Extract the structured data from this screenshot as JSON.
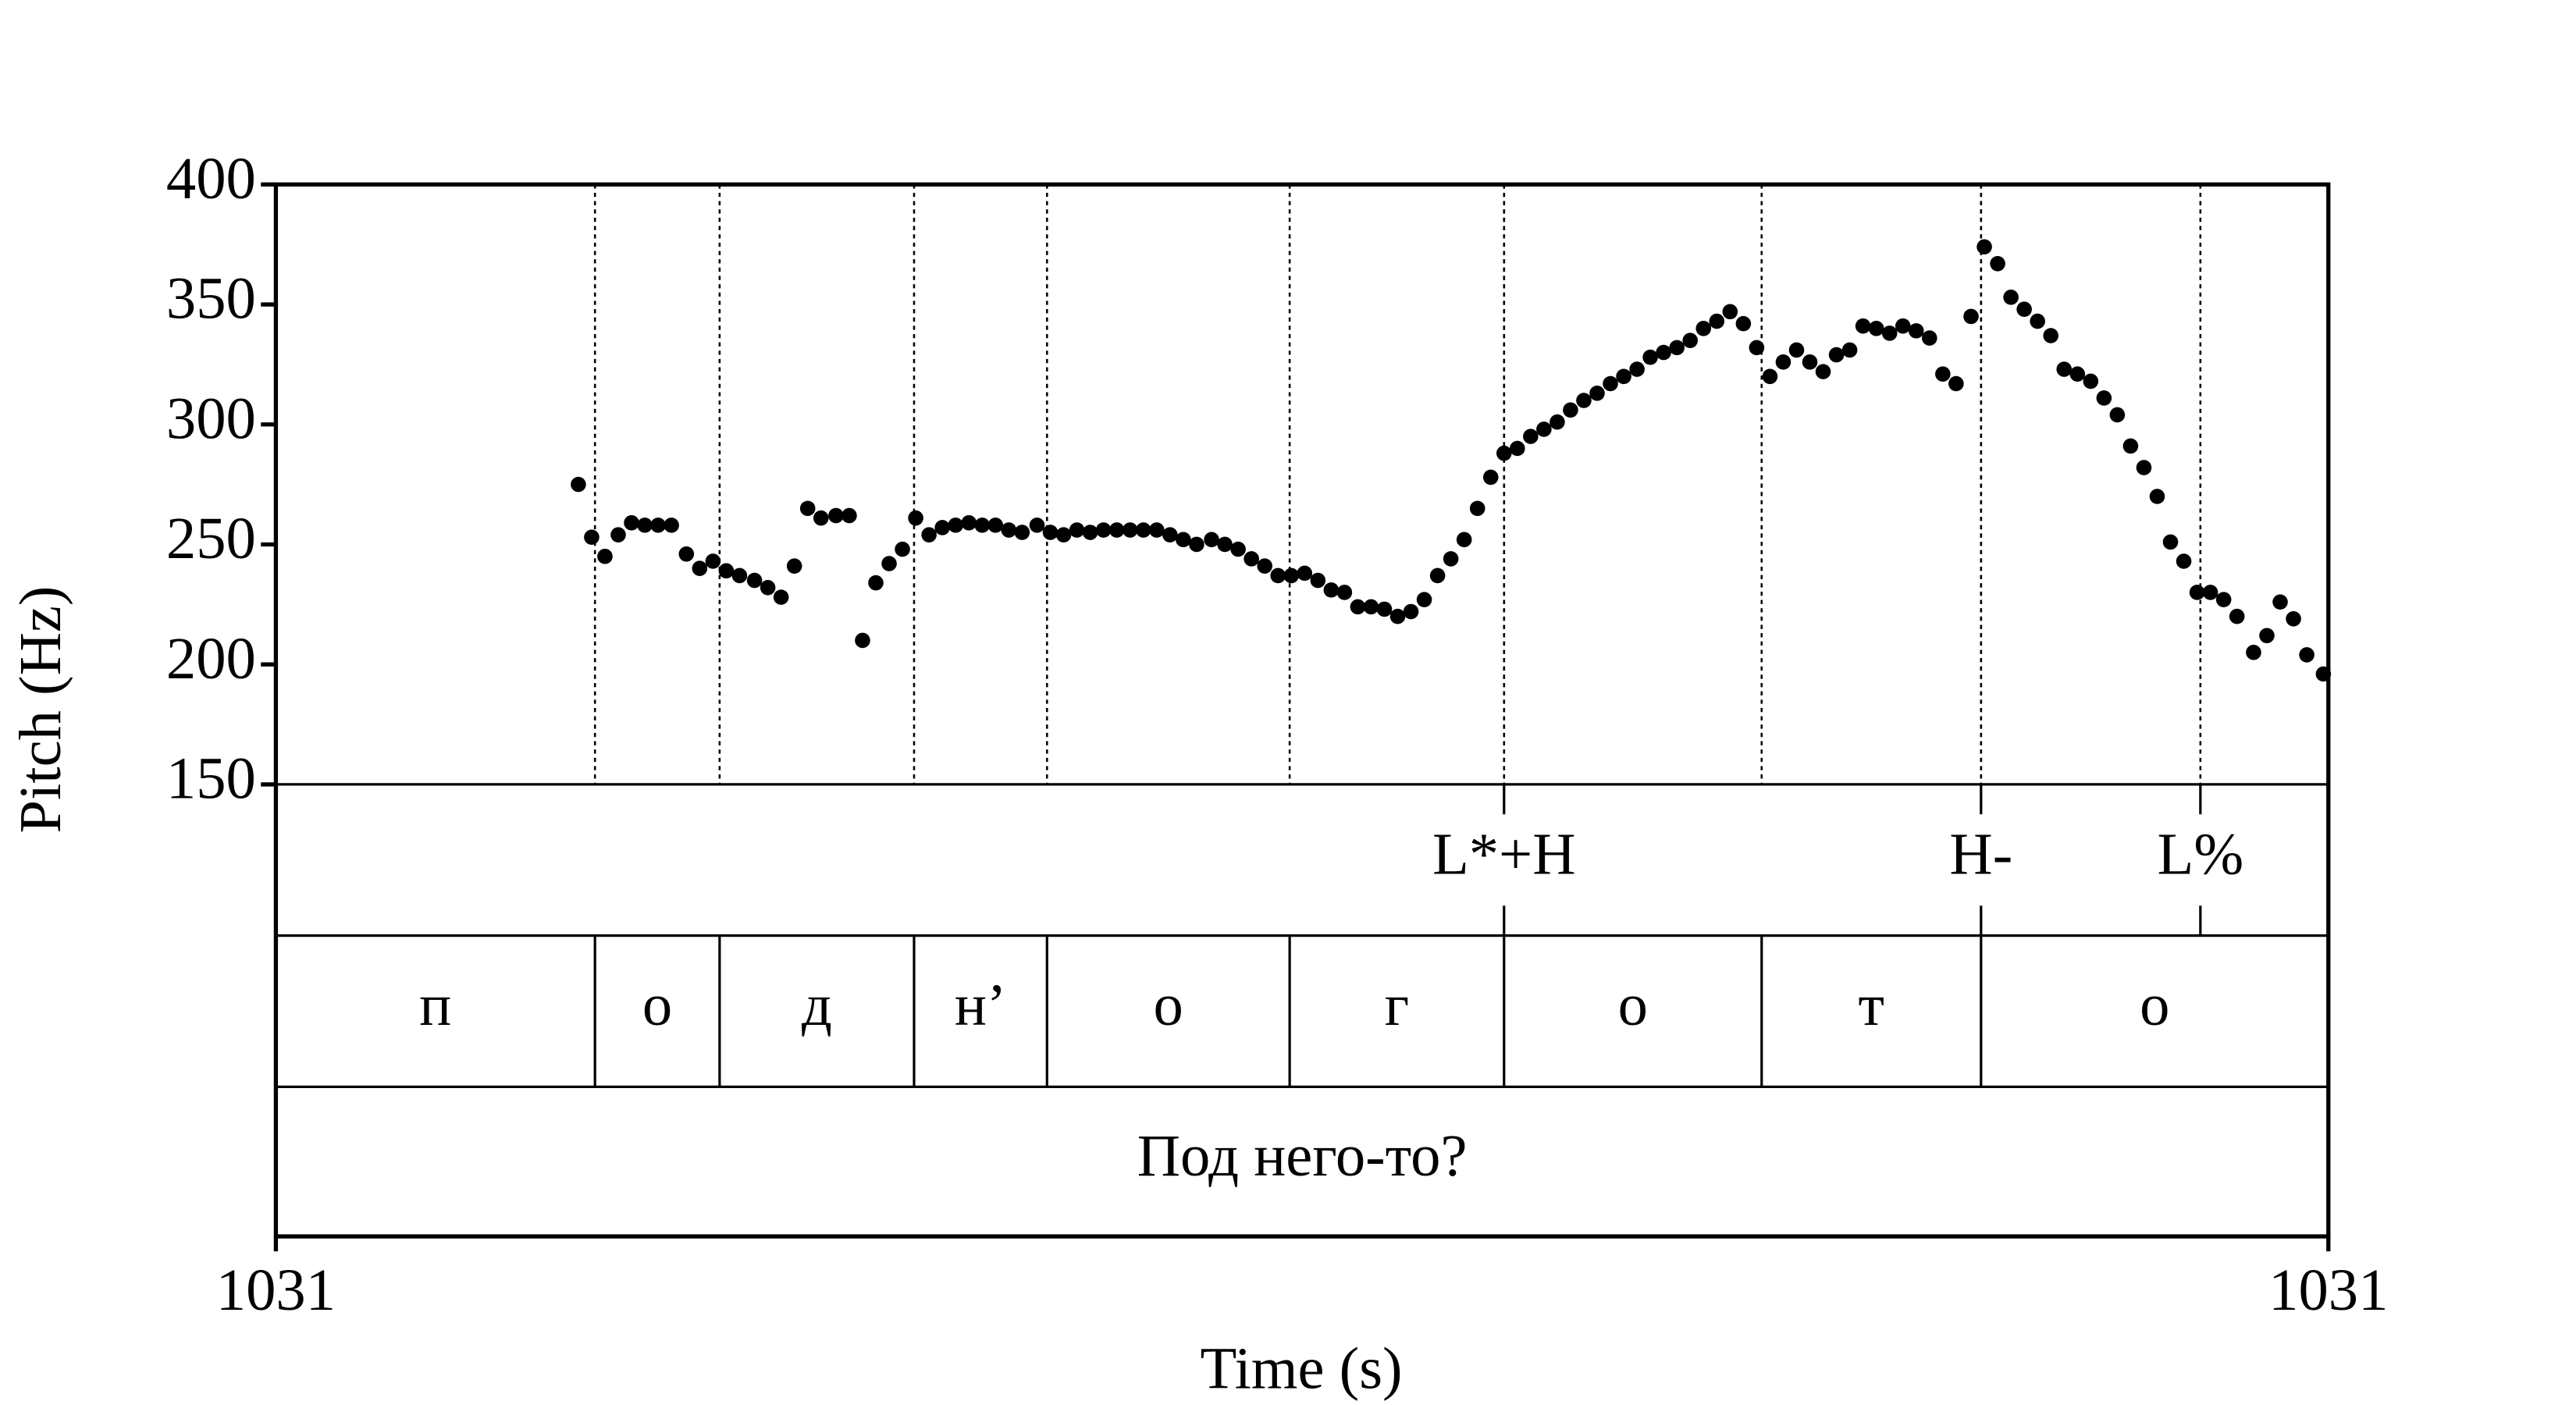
{
  "chart_data": {
    "type": "scatter",
    "x_label": "Time (s)",
    "y_label": "Pitch (Hz)",
    "color": "#000000",
    "xlim": [
      1030.7,
      1031.3175
    ],
    "xticks": [
      {
        "value": 1030.7,
        "label": "1031"
      },
      {
        "value": 1031.3175,
        "label": "1031"
      }
    ],
    "ylim": [
      150,
      400
    ],
    "yticks": [
      150,
      200,
      250,
      300,
      350,
      400
    ],
    "x": [
      1030.791,
      1030.795,
      1030.799,
      1030.803,
      1030.807,
      1030.811,
      1030.815,
      1030.819,
      1030.8235,
      1030.8275,
      1030.8315,
      1030.8355,
      1030.8395,
      1030.844,
      1030.848,
      1030.852,
      1030.856,
      1030.86,
      1030.864,
      1030.8685,
      1030.8725,
      1030.8765,
      1030.8805,
      1030.8845,
      1030.8885,
      1030.8925,
      1030.8965,
      1030.9005,
      1030.9045,
      1030.9085,
      1030.9125,
      1030.9165,
      1030.9205,
      1030.9245,
      1030.929,
      1030.933,
      1030.937,
      1030.941,
      1030.945,
      1030.949,
      1030.953,
      1030.957,
      1030.961,
      1030.965,
      1030.969,
      1030.973,
      1030.977,
      1030.9815,
      1030.9855,
      1030.9895,
      1030.9935,
      1030.9975,
      1031.0015,
      1031.0055,
      1031.0095,
      1031.0135,
      1031.0175,
      1031.0215,
      1031.0255,
      1031.0295,
      1031.0335,
      1031.0375,
      1031.0415,
      1031.0455,
      1031.0495,
      1031.0535,
      1031.0575,
      1031.0615,
      1031.0655,
      1031.0695,
      1031.0735,
      1031.0775,
      1031.0815,
      1031.0855,
      1031.0895,
      1031.0935,
      1031.0975,
      1031.1015,
      1031.1055,
      1031.1095,
      1031.1135,
      1031.1175,
      1031.1215,
      1031.1255,
      1031.1295,
      1031.1335,
      1031.1375,
      1031.1415,
      1031.1455,
      1031.1495,
      1031.1535,
      1031.1575,
      1031.1615,
      1031.1655,
      1031.1695,
      1031.1735,
      1031.1775,
      1031.1815,
      1031.1855,
      1031.1895,
      1031.1935,
      1031.1975,
      1031.2015,
      1031.2055,
      1031.21,
      1031.214,
      1031.218,
      1031.222,
      1031.226,
      1031.23,
      1031.234,
      1031.238,
      1031.242,
      1031.246,
      1031.25,
      1031.254,
      1031.258,
      1031.262,
      1031.266,
      1031.27,
      1031.274,
      1031.278,
      1031.282,
      1031.286,
      1031.29,
      1031.295,
      1031.299,
      1031.303,
      1031.307,
      1031.311,
      1031.316
    ],
    "values": [
      275,
      253,
      245,
      254,
      259,
      258,
      258,
      258,
      246,
      240,
      243,
      239,
      237,
      235,
      232,
      228,
      241,
      265,
      261,
      262,
      262,
      210,
      234,
      242,
      248,
      261,
      254,
      257,
      258,
      259,
      258,
      258,
      256,
      255,
      258,
      255,
      254,
      256,
      255,
      256,
      256,
      256,
      256,
      256,
      254,
      252,
      250,
      252,
      250,
      248,
      244,
      241,
      237,
      237,
      238,
      235,
      231,
      230,
      224,
      224,
      223,
      220,
      222,
      227,
      237,
      244,
      252,
      265,
      278,
      288,
      290,
      295,
      298,
      301,
      306,
      310,
      313,
      317,
      320,
      323,
      328,
      330,
      332,
      335,
      340,
      343,
      347,
      342,
      332,
      320,
      326,
      331,
      326,
      322,
      329,
      331,
      341,
      340,
      338,
      341,
      339,
      336,
      321,
      317,
      345,
      374,
      367,
      353,
      348,
      343,
      337,
      323,
      321,
      318,
      311,
      304,
      291,
      282,
      270,
      251,
      243,
      230,
      230,
      227,
      220,
      205,
      212,
      226,
      219,
      204,
      196
    ],
    "tone_tier": {
      "times": [
        1031.0695,
        1031.213,
        1031.279
      ],
      "labels": [
        "L*+H",
        "H-",
        "L%"
      ]
    },
    "segment_tier": {
      "boundaries": [
        1030.796,
        1030.8335,
        1030.892,
        1030.932,
        1031.005,
        1031.0695,
        1031.147,
        1031.213
      ],
      "labels": [
        "п",
        "о",
        "д",
        "н’",
        "о",
        "г",
        "о",
        "т",
        "о"
      ]
    },
    "word_tier": {
      "labels": [
        "Под него-то?"
      ]
    }
  }
}
